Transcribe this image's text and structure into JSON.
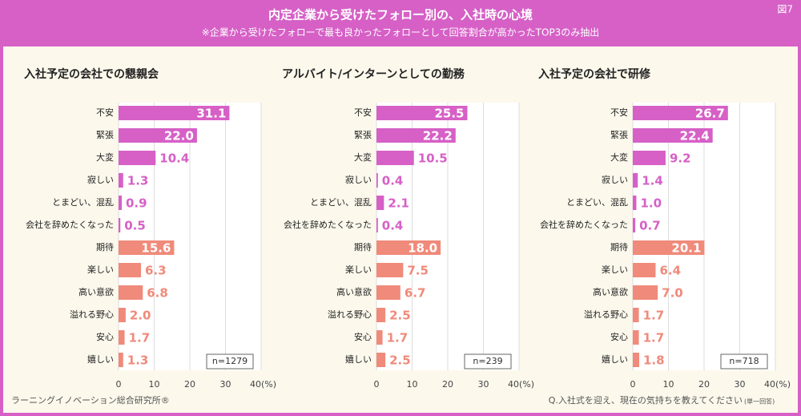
{
  "header": {
    "title": "内定企業から受けたフォロー別の、入社時の心境",
    "subtitle": "※企業から受けたフォローで最も良かったフォローとして回答割合が高かったTOP3のみ抽出",
    "figure_label": "図7"
  },
  "footer": {
    "source": "ラーニングイノベーション総合研究所®",
    "question": "Q.入社式を迎え、現在の気持ちを教えてください",
    "question_note": "(単一回答)"
  },
  "chart_data": [
    {
      "type": "hbar",
      "title": "入社予定の会社での懇親会",
      "categories": [
        "不安",
        "緊張",
        "大変",
        "寂しい",
        "とまどい、混乱",
        "会社を辞めたくなった",
        "期待",
        "楽しい",
        "高い意欲",
        "溢れる野心",
        "安心",
        "嬉しい"
      ],
      "values": [
        31.1,
        22.0,
        10.4,
        1.3,
        0.9,
        0.5,
        15.6,
        6.3,
        6.8,
        2.0,
        1.7,
        1.3
      ],
      "value_labels": [
        "31.1",
        "22.0",
        "10.4",
        "1.3",
        "0.9",
        "0.5",
        "15.6",
        "6.3",
        "6.8",
        "2.0",
        "1.7",
        "1.3"
      ],
      "bar_colors": [
        "#d660c6",
        "#d660c6",
        "#d660c6",
        "#d660c6",
        "#d660c6",
        "#d660c6",
        "#f08a7a",
        "#f08a7a",
        "#f08a7a",
        "#f08a7a",
        "#f08a7a",
        "#f08a7a"
      ],
      "xlim": [
        0,
        40
      ],
      "xticks": [
        0,
        10,
        20,
        30,
        40
      ],
      "x_unit": "(%)",
      "grid": true,
      "note": "n=1279"
    },
    {
      "type": "hbar",
      "title": "アルバイト/インターンとしての勤務",
      "categories": [
        "不安",
        "緊張",
        "大変",
        "寂しい",
        "とまどい、混乱",
        "会社を辞めたくなった",
        "期待",
        "楽しい",
        "高い意欲",
        "溢れる野心",
        "安心",
        "嬉しい"
      ],
      "values": [
        25.5,
        22.2,
        10.5,
        0.4,
        2.1,
        0.4,
        18.0,
        7.5,
        6.7,
        2.5,
        1.7,
        2.5
      ],
      "value_labels": [
        "25.5",
        "22.2",
        "10.5",
        "0.4",
        "2.1",
        "0.4",
        "18.0",
        "7.5",
        "6.7",
        "2.5",
        "1.7",
        "2.5"
      ],
      "bar_colors": [
        "#d660c6",
        "#d660c6",
        "#d660c6",
        "#d660c6",
        "#d660c6",
        "#d660c6",
        "#f08a7a",
        "#f08a7a",
        "#f08a7a",
        "#f08a7a",
        "#f08a7a",
        "#f08a7a"
      ],
      "xlim": [
        0,
        40
      ],
      "xticks": [
        0,
        10,
        20,
        30,
        40
      ],
      "x_unit": "(%)",
      "grid": true,
      "note": "n=239"
    },
    {
      "type": "hbar",
      "title": "入社予定の会社で研修",
      "categories": [
        "不安",
        "緊張",
        "大変",
        "寂しい",
        "とまどい、混乱",
        "会社を辞めたくなった",
        "期待",
        "楽しい",
        "高い意欲",
        "溢れる野心",
        "安心",
        "嬉しい"
      ],
      "values": [
        26.7,
        22.4,
        9.2,
        1.4,
        1.0,
        0.7,
        20.1,
        6.4,
        7.0,
        1.7,
        1.7,
        1.8
      ],
      "value_labels": [
        "26.7",
        "22.4",
        "9.2",
        "1.4",
        "1.0",
        "0.7",
        "20.1",
        "6.4",
        "7.0",
        "1.7",
        "1.7",
        "1.8"
      ],
      "bar_colors": [
        "#d660c6",
        "#d660c6",
        "#d660c6",
        "#d660c6",
        "#d660c6",
        "#d660c6",
        "#f08a7a",
        "#f08a7a",
        "#f08a7a",
        "#f08a7a",
        "#f08a7a",
        "#f08a7a"
      ],
      "xlim": [
        0,
        40
      ],
      "xticks": [
        0,
        10,
        20,
        30,
        40
      ],
      "x_unit": "(%)",
      "grid": true,
      "note": "n=718"
    }
  ]
}
